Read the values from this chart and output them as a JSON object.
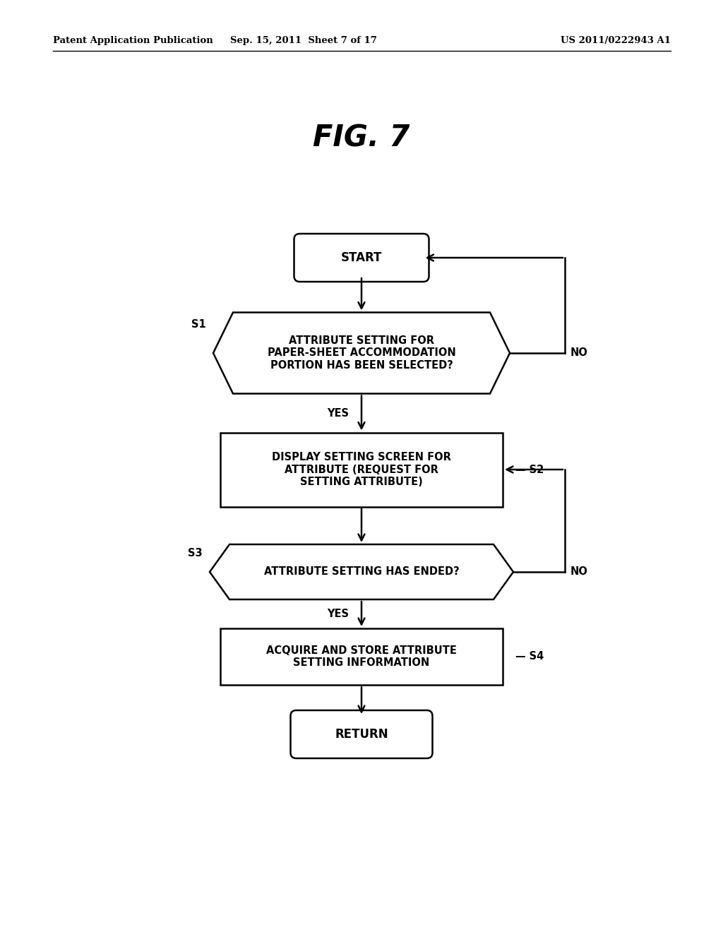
{
  "bg_color": "#ffffff",
  "header_left": "Patent Application Publication",
  "header_mid": "Sep. 15, 2011  Sheet 7 of 17",
  "header_right": "US 2011/0222943 A1",
  "fig_title": "FIG. 7",
  "start_label": "START",
  "s1_text": "ATTRIBUTE SETTING FOR\nPAPER-SHEET ACCOMMODATION\nPORTION HAS BEEN SELECTED?",
  "s2_text": "DISPLAY SETTING SCREEN FOR\nATTRIBUTE (REQUEST FOR\nSETTING ATTRIBUTE)",
  "s3_text": "ATTRIBUTE SETTING HAS ENDED?",
  "s4_text": "ACQUIRE AND STORE ATTRIBUTE\nSETTING INFORMATION",
  "return_label": "RETURN"
}
